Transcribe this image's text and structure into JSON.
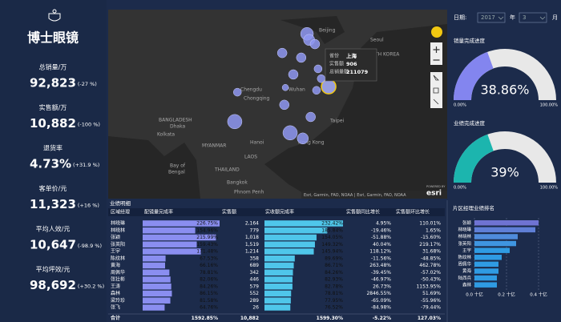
{
  "brand": "博士眼镜",
  "kpis": [
    {
      "label": "总销量/万",
      "value": "92,823",
      "change": "(-27 %)"
    },
    {
      "label": "实售额/万",
      "value": "10,882",
      "change": "(-100 %)"
    },
    {
      "label": "退货率",
      "value": "4.73%",
      "change": "(+31.9 %)"
    },
    {
      "label": "客单价/元",
      "value": "11,323",
      "change": "(+16 %)"
    },
    {
      "label": "平均人效/元",
      "value": "10,647",
      "change": "(-98.9 %)"
    },
    {
      "label": "平均坪效/元",
      "value": "98,692",
      "change": "(+30.2 %)"
    }
  ],
  "map": {
    "labels": [
      "Beijing",
      "Seoul",
      "SOUTH KOREA",
      "Chengdu",
      "Chongqing",
      "Wuhan",
      "BANGLADESH",
      "Dhaka",
      "Kolkata",
      "MYANMAR",
      "Hanoi",
      "LAOS",
      "Bay of",
      "Bengal",
      "THAILAND",
      "Bangkok",
      "Phnom Penh",
      "Taipei",
      "Hong Kong"
    ],
    "tooltip": [
      [
        "省份",
        "上海"
      ],
      [
        "实售额",
        "906"
      ],
      [
        "总销量额",
        "211079"
      ]
    ],
    "attribution": "Esri, Garmin, FAO, NOAA | Esri, Garmin, FAO, NOAA",
    "powered": "POWERED BY",
    "logo": "esri",
    "points": [
      {
        "lon": 117.7,
        "lat": 42.5,
        "value": 711
      },
      {
        "lon": 118.1,
        "lat": 41.2,
        "value": 544
      },
      {
        "lon": 119.2,
        "lat": 40.3,
        "value": 400
      },
      {
        "lon": 113.0,
        "lat": 38.4,
        "value": 400
      },
      {
        "lon": 116.6,
        "lat": 37.4,
        "value": 400
      },
      {
        "lon": 119.8,
        "lat": 35.0,
        "value": 278
      },
      {
        "lon": 115.1,
        "lat": 33.8,
        "value": 400
      },
      {
        "lon": 104.5,
        "lat": 30.0,
        "value": 278
      },
      {
        "lon": 113.6,
        "lat": 31.0,
        "value": 178
      },
      {
        "lon": 121.8,
        "lat": 31.2,
        "value": 906
      },
      {
        "lon": 120.4,
        "lat": 32.9,
        "value": 278
      },
      {
        "lon": 119.5,
        "lat": 30.4,
        "value": 278
      },
      {
        "lon": 113.4,
        "lat": 27.3,
        "value": 400
      },
      {
        "lon": 104.0,
        "lat": 23.7,
        "value": 900
      },
      {
        "lon": 118.4,
        "lat": 24.7,
        "value": 400
      },
      {
        "lon": 114.5,
        "lat": 21.3,
        "value": 900
      },
      {
        "lon": 116.9,
        "lat": 20.1,
        "value": 544
      }
    ]
  },
  "filters": {
    "date_label": "日期:",
    "year": "2017",
    "year_unit": "年",
    "month": "3",
    "month_unit": "月"
  },
  "gauges": [
    {
      "title": "销量完成进度",
      "value": 38.86,
      "value_label": "38.86%",
      "min": {
        "value": 0,
        "label": "0.00%"
      },
      "max": {
        "value": 100,
        "label": "100.00%"
      },
      "color": "#8385ef"
    },
    {
      "title": "业绩完成进度",
      "value": 39,
      "value_label": "39%",
      "min": {
        "value": 0,
        "label": "0.00%"
      },
      "max": {
        "value": 100,
        "label": "100.00%"
      },
      "color": "#1cb5ae"
    }
  ],
  "table": {
    "title": "业绩明细",
    "header": [
      "区域经理",
      "配镜量完成率",
      "实售额",
      "实收额完成率",
      "实售额同比增长",
      "实售额环比增长"
    ],
    "rows": [
      [
        "林晓琳",
        "226.75%",
        "2,164",
        "232.42%",
        "4.95%",
        "110.01%"
      ],
      [
        "林晓林",
        "154.96%",
        "779",
        "185.84%",
        "-19.46%",
        "1.65%"
      ],
      [
        "张颖",
        "215.99%",
        "1,018",
        "154.05%",
        "-51.88%",
        "-15.60%"
      ],
      [
        "张英阳",
        "159.43%",
        "1,519",
        "149.32%",
        "40.04%",
        "219.17%"
      ],
      [
        "王宇",
        "171.48%",
        "1,214",
        "145.94%",
        "118.12%",
        "31.68%"
      ],
      [
        "陈纹林",
        "67.53%",
        "358",
        "89.69%",
        "-11.56%",
        "-48.85%"
      ],
      [
        "黄海",
        "66.16%",
        "689",
        "86.71%",
        "263.48%",
        "462.78%"
      ],
      [
        "周佩华",
        "78.81%",
        "342",
        "84.26%",
        "-39.45%",
        "-57.02%"
      ],
      [
        "张壮彬",
        "82.06%",
        "446",
        "82.93%",
        "-46.97%",
        "-50.43%"
      ],
      [
        "王涛",
        "84.26%",
        "579",
        "82.78%",
        "26.73%",
        "1153.95%"
      ],
      [
        "森林",
        "86.15%",
        "552",
        "78.81%",
        "2846.55%",
        "51.69%"
      ],
      [
        "梁玲珍",
        "81.58%",
        "289",
        "77.95%",
        "-65.09%",
        "-55.96%"
      ],
      [
        "张飞",
        "64.76%",
        "26",
        "76.52%",
        "-84.98%",
        "-79.44%"
      ]
    ],
    "total": [
      "合计",
      "1592.85%",
      "10,882",
      "1599.30%",
      "-5.22%",
      "127.03%"
    ]
  },
  "ranking": {
    "type": "bar",
    "title": "片区经理业绩排名",
    "categories": [
      "张颖",
      "林晓琳",
      "林晓林",
      "张英阳",
      "王宇",
      "陈纹林",
      "周佩华",
      "黄海",
      "陆西兵",
      "森林"
    ],
    "values": [
      0.4,
      0.38,
      0.27,
      0.26,
      0.22,
      0.17,
      0.15,
      0.15,
      0.14,
      0.14
    ],
    "colors": [
      "#6f73d2",
      "#5f7fd6",
      "#4f8cdb",
      "#3f95e0",
      "#2f9be3",
      "#2f9be3",
      "#2f9be3",
      "#2f9be3",
      "#2f9be3",
      "#2f9be3"
    ],
    "xlim": [
      0,
      0.45
    ],
    "xticks": [
      {
        "value": 0,
        "label": "0.0 十亿"
      },
      {
        "value": 0.2,
        "label": "0.2 十亿"
      },
      {
        "value": 0.4,
        "label": "0.4 十亿"
      }
    ]
  }
}
